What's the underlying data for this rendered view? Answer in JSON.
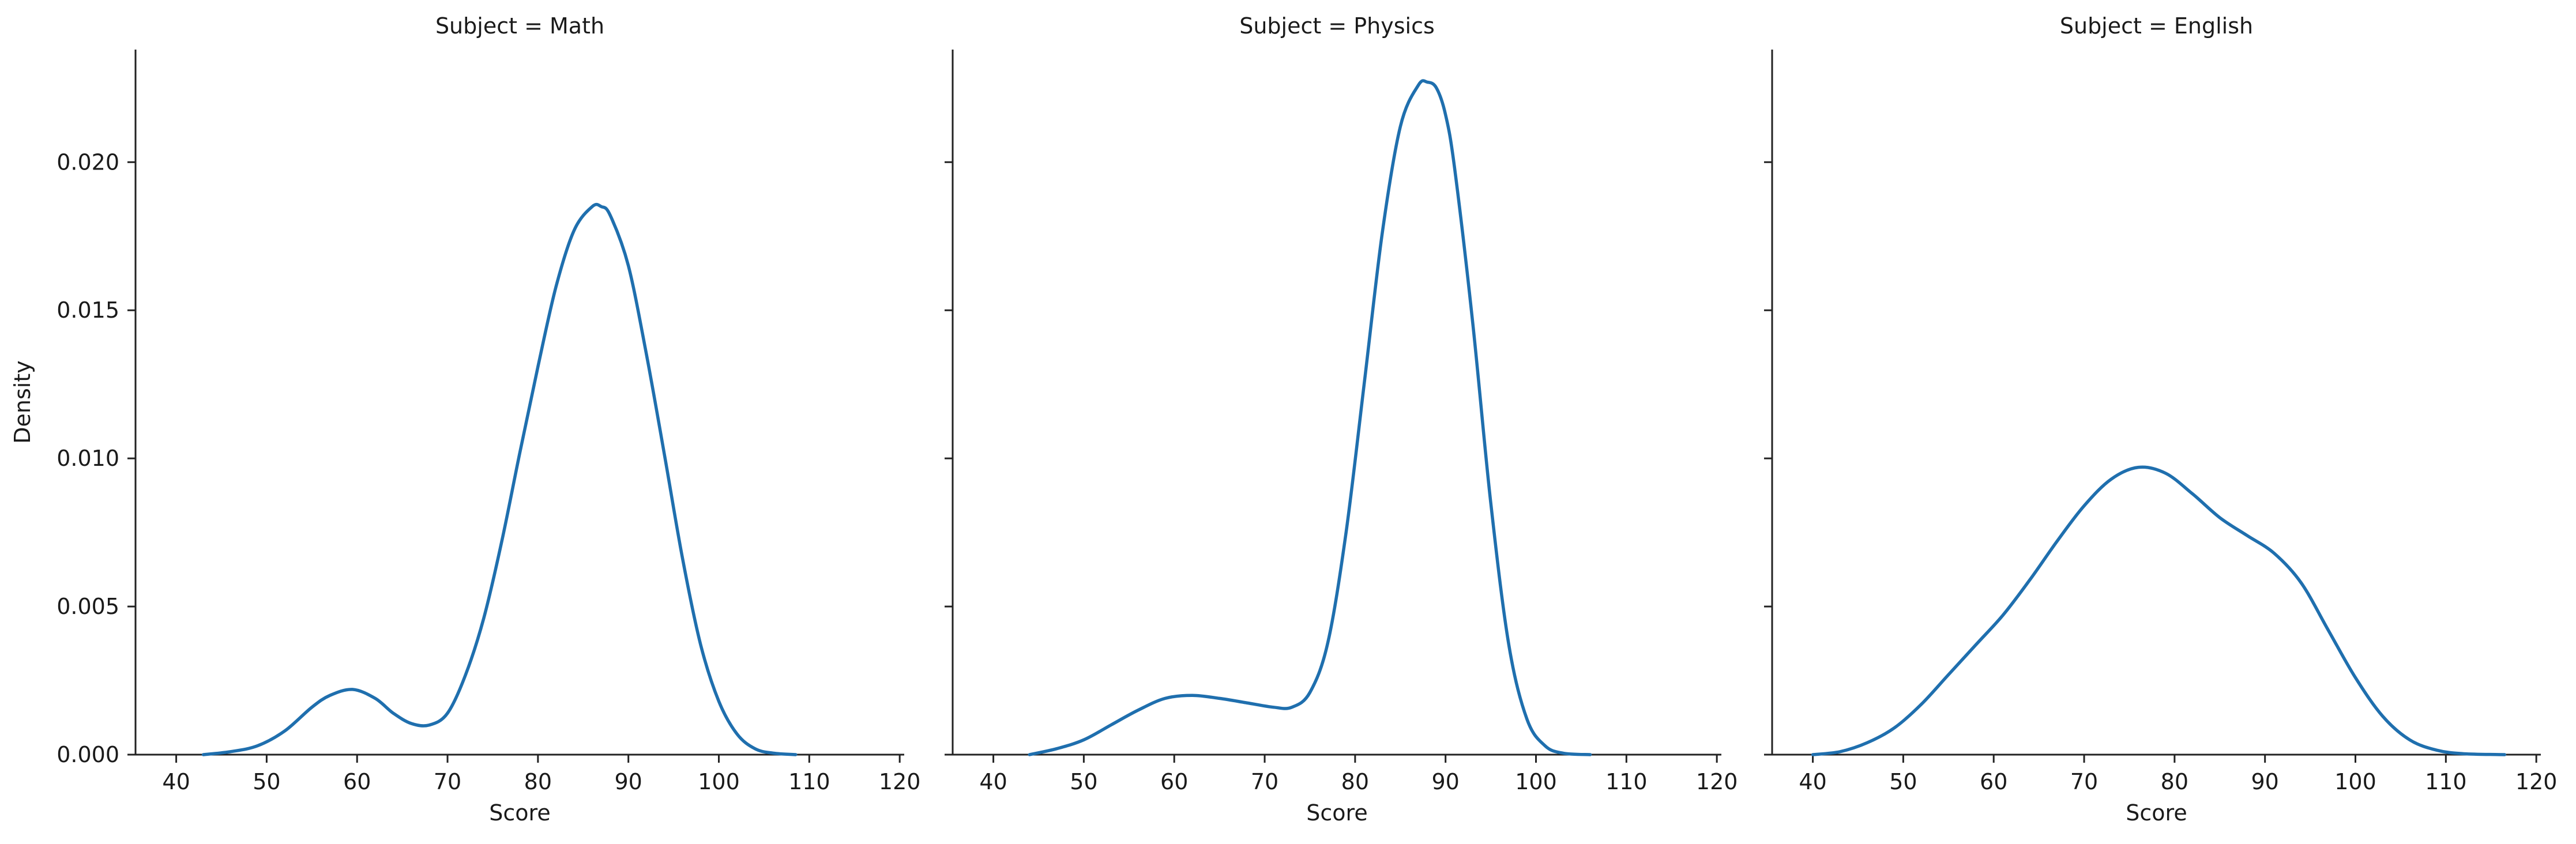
{
  "chart_data": {
    "type": "line",
    "subtitle_label": "Density",
    "colors": {
      "line": "#1f6fae"
    },
    "shared_y": {
      "label": "Density",
      "ylim": [
        0,
        0.0238
      ],
      "ticks": [
        0.0,
        0.005,
        0.01,
        0.015,
        0.02
      ],
      "tick_labels": [
        "0.000",
        "0.005",
        "0.010",
        "0.015",
        "0.020"
      ]
    },
    "shared_x": {
      "label": "Score",
      "xlim": [
        35.5,
        120.5
      ],
      "ticks": [
        40,
        50,
        60,
        70,
        80,
        90,
        100,
        110,
        120
      ],
      "tick_labels": [
        "40",
        "50",
        "60",
        "70",
        "80",
        "90",
        "100",
        "110",
        "120"
      ]
    },
    "panels": [
      {
        "title": "Subject = Math",
        "series": [
          {
            "x": [
              43,
              46,
              49,
              52,
              55,
              57,
              59.5,
              62,
              64,
              66,
              68,
              70,
              72,
              74,
              76,
              78,
              80,
              82,
              84,
              86,
              87,
              88,
              90,
              92,
              94,
              96,
              98,
              100,
              102,
              104,
              106,
              108.5
            ],
            "y": [
              0.0,
              0.0001,
              0.0003,
              0.0008,
              0.0016,
              0.002,
              0.0022,
              0.0019,
              0.0014,
              0.00105,
              0.001,
              0.0014,
              0.0027,
              0.0046,
              0.0072,
              0.0102,
              0.0131,
              0.0158,
              0.0177,
              0.0185,
              0.0185,
              0.0182,
              0.0165,
              0.0135,
              0.0101,
              0.0066,
              0.0037,
              0.0018,
              0.0007,
              0.0002,
              5e-05,
              0.0
            ]
          }
        ]
      },
      {
        "title": "Subject = Physics",
        "series": [
          {
            "x": [
              44,
              47,
              50,
              53,
              56,
              59,
              62,
              65,
              68,
              71,
              73,
              75,
              77,
              79,
              81,
              83,
              85,
              87,
              88,
              89,
              90,
              91,
              93,
              95,
              97,
              99,
              101,
              103,
              106
            ],
            "y": [
              0.0,
              0.0002,
              0.0005,
              0.001,
              0.0015,
              0.0019,
              0.002,
              0.0019,
              0.00175,
              0.0016,
              0.0016,
              0.0021,
              0.0038,
              0.0075,
              0.0125,
              0.0176,
              0.0212,
              0.0226,
              0.0227,
              0.0225,
              0.0216,
              0.0198,
              0.0146,
              0.0085,
              0.0037,
              0.0012,
              0.0003,
              5e-05,
              0.0
            ]
          }
        ]
      },
      {
        "title": "Subject = English",
        "series": [
          {
            "x": [
              40,
              43,
              46,
              49,
              52,
              55,
              58,
              61,
              64,
              67,
              70,
              73,
              76,
              79,
              82,
              85,
              88,
              91,
              94,
              97,
              100,
              103,
              106,
              109,
              112,
              116.5
            ],
            "y": [
              0.0,
              0.0001,
              0.0004,
              0.0009,
              0.0017,
              0.0027,
              0.0037,
              0.0047,
              0.0059,
              0.0072,
              0.0084,
              0.0093,
              0.0097,
              0.0095,
              0.0088,
              0.008,
              0.0074,
              0.0068,
              0.0058,
              0.0042,
              0.0026,
              0.0013,
              0.0005,
              0.00015,
              3e-05,
              0.0
            ]
          }
        ]
      }
    ]
  }
}
